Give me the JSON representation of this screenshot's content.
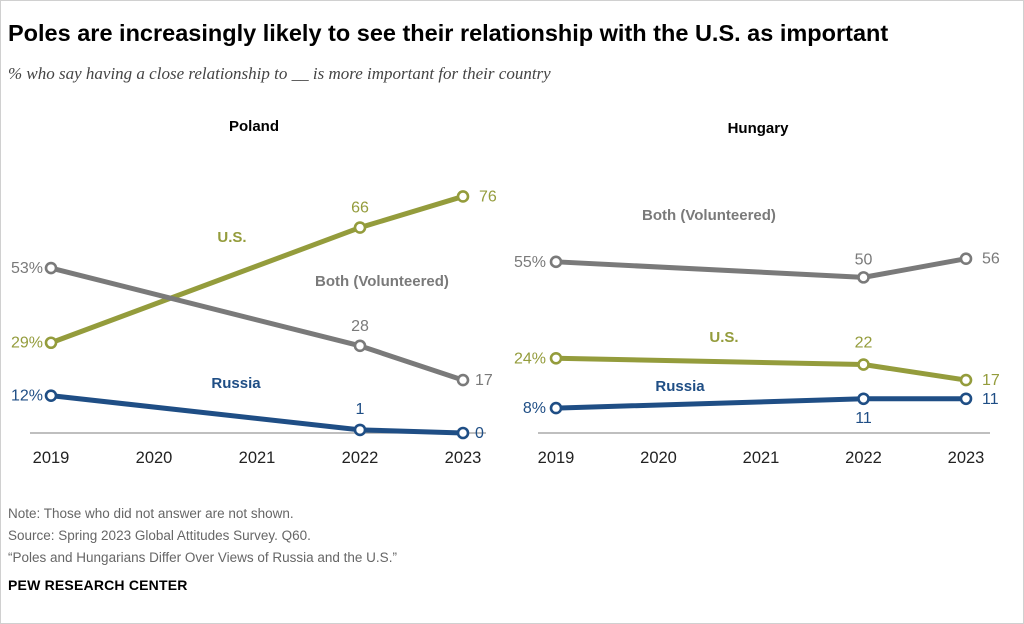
{
  "header": {
    "title": "Poles are increasingly likely to see their relationship with the U.S. as important",
    "subtitle": "% who say having a close relationship to __ is more important for their country"
  },
  "footer": {
    "note": "Note: Those who did not answer are not shown.",
    "source": "Source: Spring 2023 Global Attitudes Survey. Q60.",
    "report": "“Poles and Hungarians Differ Over Views of Russia and the U.S.”",
    "brand": "PEW RESEARCH CENTER"
  },
  "colors": {
    "us": "#949c3c",
    "both": "#7a7a7a",
    "russia": "#1f4e85",
    "axis": "#999999"
  },
  "chart_data": [
    {
      "type": "line",
      "title": "Poland",
      "x": [
        2019,
        2020,
        2021,
        2022,
        2023
      ],
      "ylim": [
        0,
        80
      ],
      "series": [
        {
          "name": "U.S.",
          "key": "us",
          "label": "U.S.",
          "points": [
            [
              2019,
              29
            ],
            [
              2022,
              66
            ],
            [
              2023,
              76
            ]
          ],
          "labels": [
            "29%",
            "66",
            "76"
          ]
        },
        {
          "name": "Both (Volunteered)",
          "key": "both",
          "label": "Both (Volunteered)",
          "points": [
            [
              2019,
              53
            ],
            [
              2022,
              28
            ],
            [
              2023,
              17
            ]
          ],
          "labels": [
            "53%",
            "28",
            "17"
          ]
        },
        {
          "name": "Russia",
          "key": "russia",
          "label": "Russia",
          "points": [
            [
              2019,
              12
            ],
            [
              2022,
              1
            ],
            [
              2023,
              0
            ]
          ],
          "labels": [
            "12%",
            "1",
            "0"
          ]
        }
      ]
    },
    {
      "type": "line",
      "title": "Hungary",
      "x": [
        2019,
        2020,
        2021,
        2022,
        2023
      ],
      "ylim": [
        0,
        80
      ],
      "series": [
        {
          "name": "Both (Volunteered)",
          "key": "both",
          "label": "Both (Volunteered)",
          "points": [
            [
              2019,
              55
            ],
            [
              2022,
              50
            ],
            [
              2023,
              56
            ]
          ],
          "labels": [
            "55%",
            "50",
            "56"
          ]
        },
        {
          "name": "U.S.",
          "key": "us",
          "label": "U.S.",
          "points": [
            [
              2019,
              24
            ],
            [
              2022,
              22
            ],
            [
              2023,
              17
            ]
          ],
          "labels": [
            "24%",
            "22",
            "17"
          ]
        },
        {
          "name": "Russia",
          "key": "russia",
          "label": "Russia",
          "points": [
            [
              2019,
              8
            ],
            [
              2022,
              11
            ],
            [
              2023,
              11
            ]
          ],
          "labels": [
            "8%",
            "11",
            "11"
          ]
        }
      ]
    }
  ]
}
